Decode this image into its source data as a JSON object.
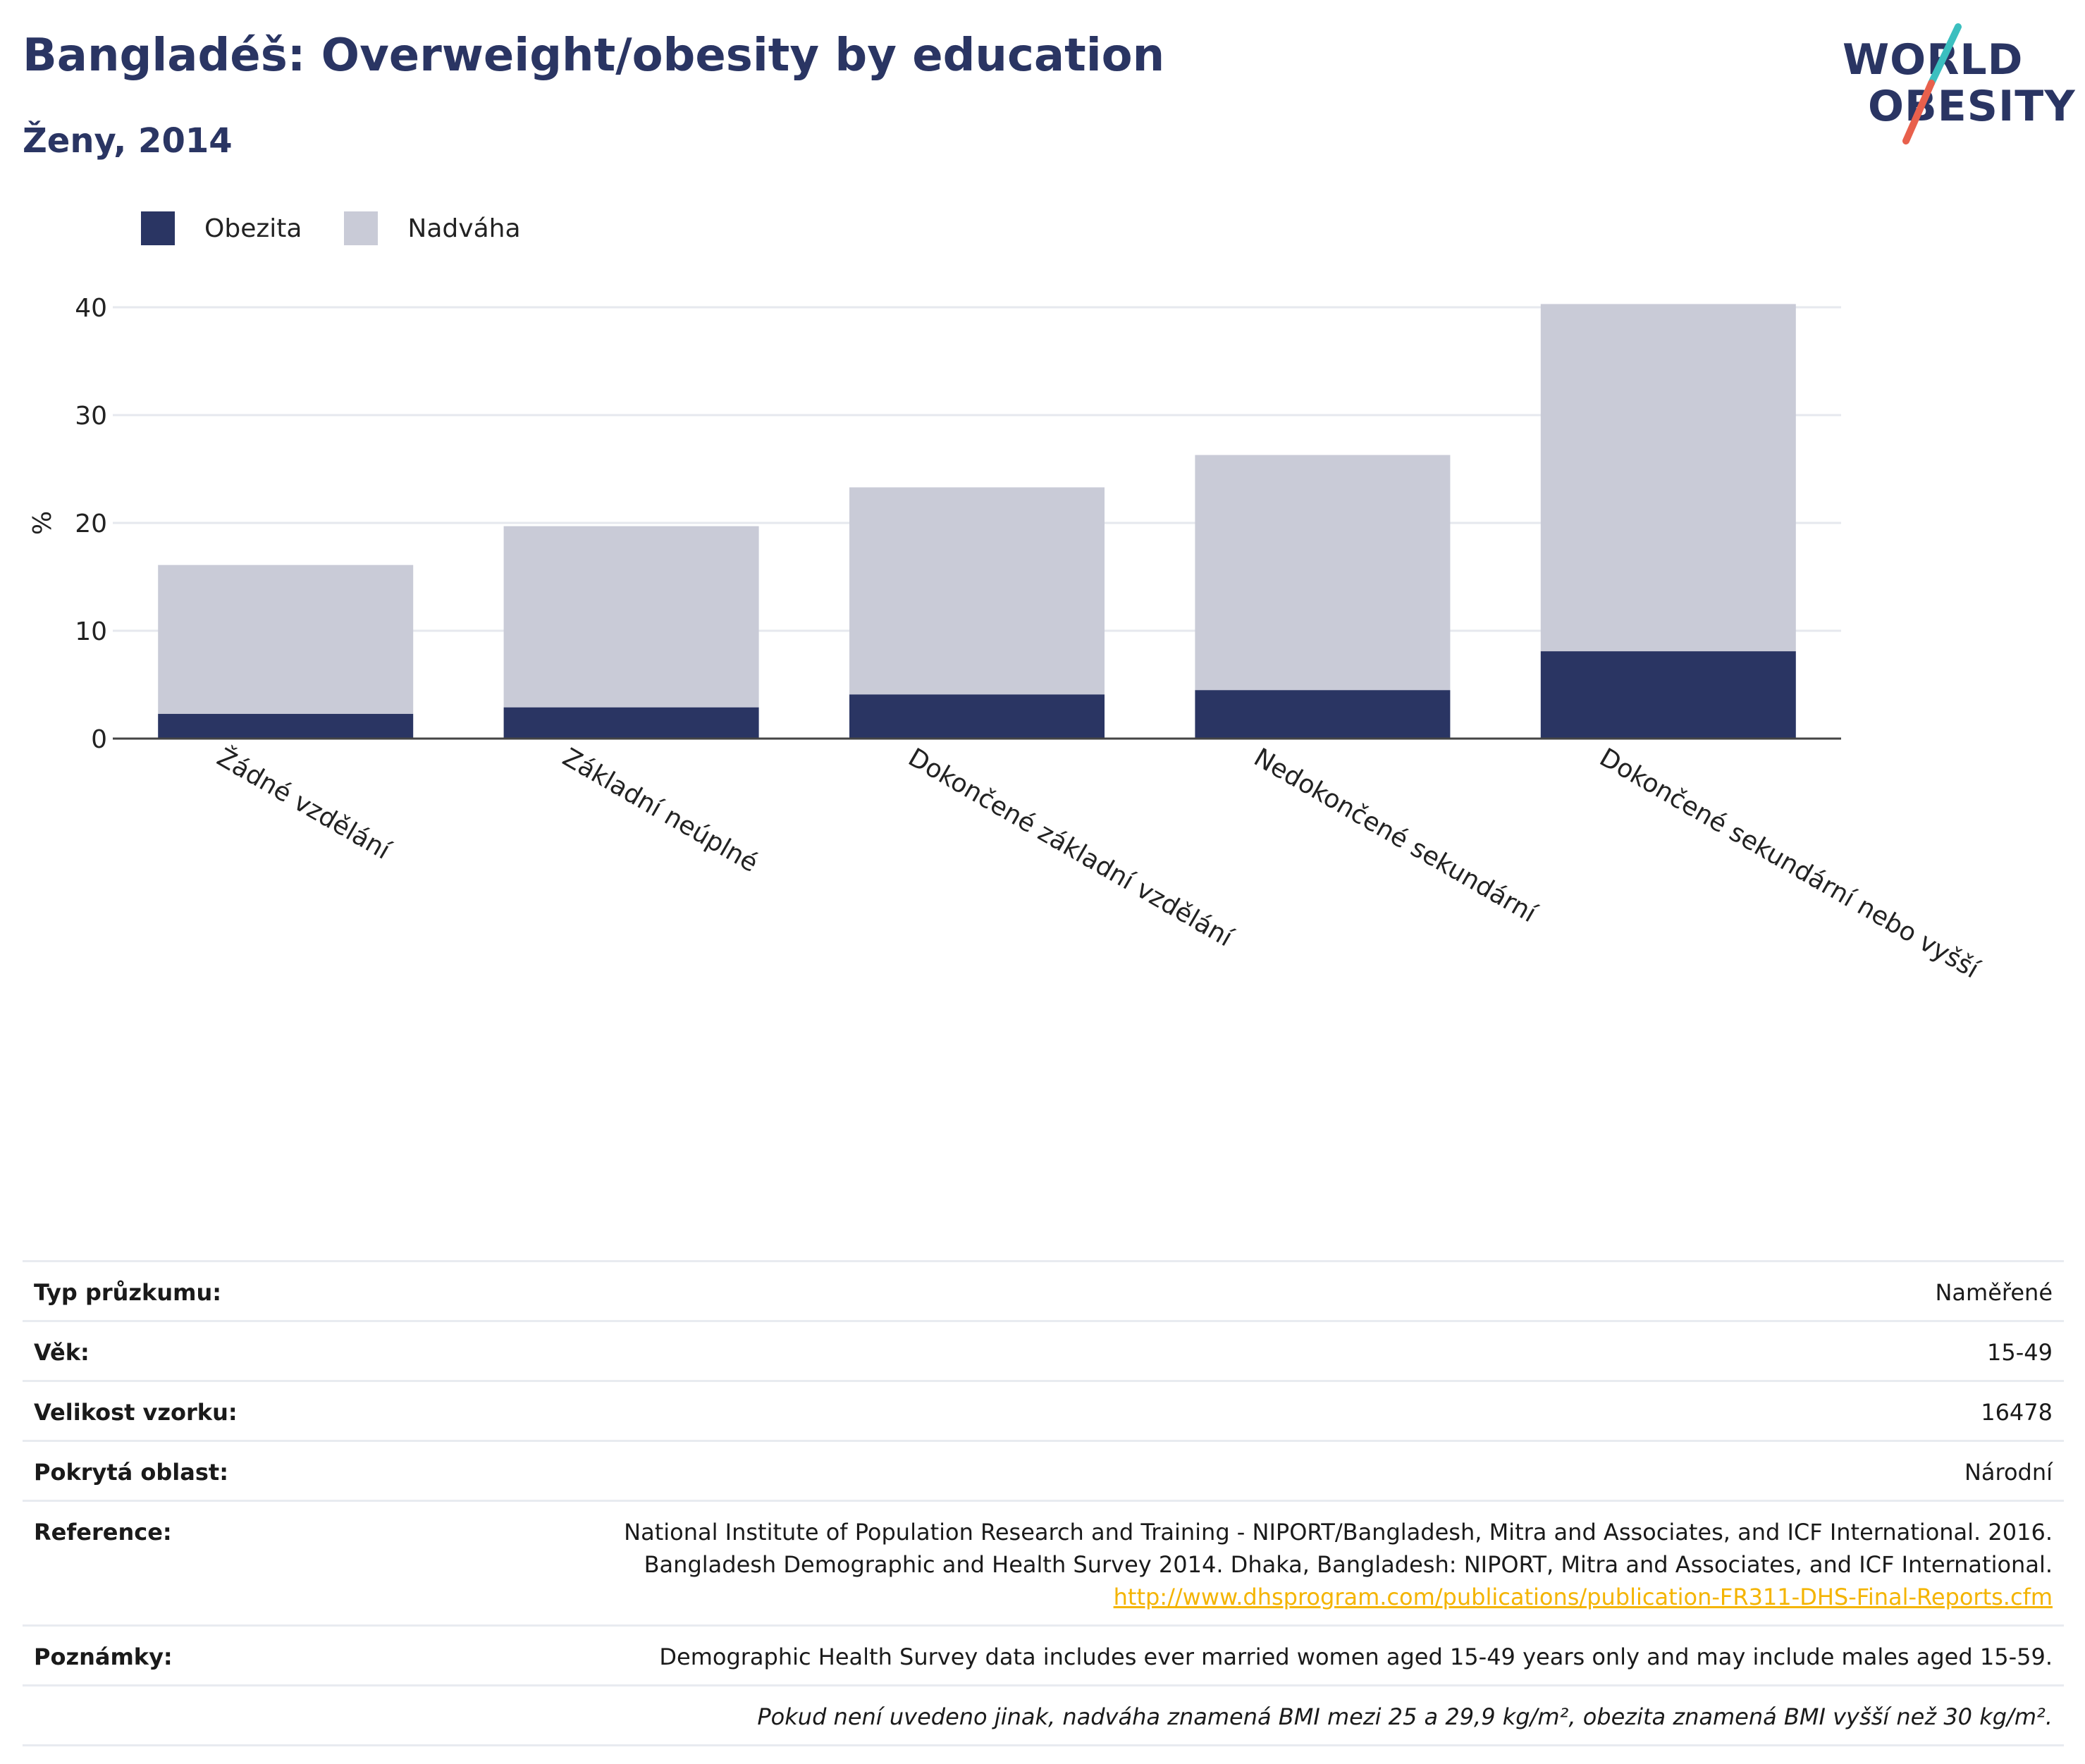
{
  "header": {
    "title": "Bangladéš: Overweight/obesity by education",
    "subtitle": "Ženy, 2014"
  },
  "logo": {
    "line1": "WORLD",
    "line2": "OBESITY"
  },
  "colors": {
    "obesity": "#2a3563",
    "overweight": "#c9cbd7",
    "accent_teal": "#3bbfbf",
    "accent_red": "#e8604c"
  },
  "chart_data": {
    "type": "bar",
    "stacked": true,
    "categories": [
      "Žádné vzdělání",
      "Základní neúplné",
      "Dokončené základní vzdělání",
      "Nedokončené sekundární",
      "Dokončené sekundární nebo vyšší"
    ],
    "series": [
      {
        "name": "Obezita",
        "values": [
          2.3,
          2.9,
          4.1,
          4.5,
          8.1
        ]
      },
      {
        "name": "Nadváha",
        "values": [
          13.8,
          16.8,
          19.2,
          21.8,
          32.2
        ]
      }
    ],
    "totals": [
      16.1,
      19.7,
      23.3,
      26.3,
      40.3
    ],
    "ylabel": "%",
    "xlabel": "",
    "ylim": [
      0,
      40
    ],
    "yticks": [
      0,
      10,
      20,
      30,
      40
    ],
    "grid": true,
    "legend": "top-left"
  },
  "meta": {
    "rows": [
      {
        "label": "Typ průzkumu:",
        "value": "Naměřené"
      },
      {
        "label": "Věk:",
        "value": "15-49"
      },
      {
        "label": "Velikost vzorku:",
        "value": "16478"
      },
      {
        "label": "Pokrytá oblast:",
        "value": "Národní"
      }
    ],
    "reference_label": "Reference:",
    "reference_line1": "National Institute of Population Research and Training - NIPORT/Bangladesh, Mitra and Associates, and ICF International. 2016.",
    "reference_line2": "Bangladesh Demographic and Health Survey 2014. Dhaka, Bangladesh: NIPORT, Mitra and Associates, and ICF International.",
    "reference_link": "http://www.dhsprogram.com/publications/publication-FR311-DHS-Final-Reports.cfm",
    "notes_label": "Poznámky:",
    "notes_value": "Demographic Health Survey data includes ever married women aged 15-49 years only and may include males aged 15-59.",
    "footnote": "Pokud není uvedeno jinak, nadváha znamená BMI mezi 25 a 29,9 kg/m², obezita znamená BMI vyšší než 30 kg/m²."
  }
}
